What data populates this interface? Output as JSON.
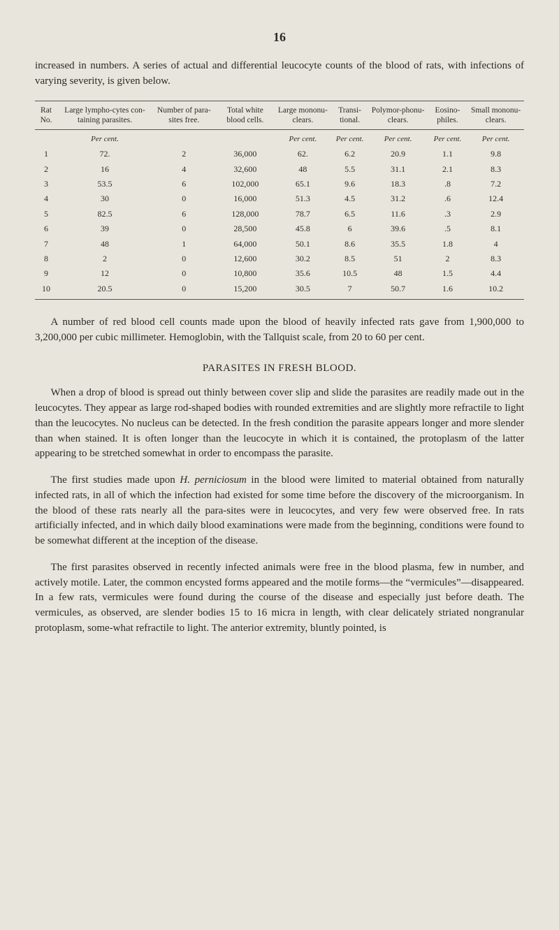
{
  "page_number": "16",
  "intro_para": "increased in numbers. A series of actual and differential leucocyte counts of the blood of rats, with infections of varying severity, is given below.",
  "table": {
    "columns": [
      "Rat No.",
      "Large lympho-cytes con-taining parasites.",
      "Number of para-sites free.",
      "Total white blood cells.",
      "Large mononu-clears.",
      "Transi-tional.",
      "Polymor-phonu-clears.",
      "Eosino-philes.",
      "Small mononu-clears."
    ],
    "unit_row": [
      "",
      "Per cent.",
      "",
      "",
      "Per cent.",
      "Per cent.",
      "Per cent.",
      "Per cent.",
      "Per cent."
    ],
    "rows": [
      [
        "1",
        "72.",
        "2",
        "36,000",
        "62.",
        "6.2",
        "20.9",
        "1.1",
        "9.8"
      ],
      [
        "2",
        "16",
        "4",
        "32,600",
        "48",
        "5.5",
        "31.1",
        "2.1",
        "8.3"
      ],
      [
        "3",
        "53.5",
        "6",
        "102,000",
        "65.1",
        "9.6",
        "18.3",
        ".8",
        "7.2"
      ],
      [
        "4",
        "30",
        "0",
        "16,000",
        "51.3",
        "4.5",
        "31.2",
        ".6",
        "12.4"
      ],
      [
        "5",
        "82.5",
        "6",
        "128,000",
        "78.7",
        "6.5",
        "11.6",
        ".3",
        "2.9"
      ],
      [
        "6",
        "39",
        "0",
        "28,500",
        "45.8",
        "6",
        "39.6",
        ".5",
        "8.1"
      ],
      [
        "7",
        "48",
        "1",
        "64,000",
        "50.1",
        "8.6",
        "35.5",
        "1.8",
        "4"
      ],
      [
        "8",
        "2",
        "0",
        "12,600",
        "30.2",
        "8.5",
        "51",
        "2",
        "8.3"
      ],
      [
        "9",
        "12",
        "0",
        "10,800",
        "35.6",
        "10.5",
        "48",
        "1.5",
        "4.4"
      ],
      [
        "10",
        "20.5",
        "0",
        "15,200",
        "30.5",
        "7",
        "50.7",
        "1.6",
        "10.2"
      ]
    ]
  },
  "after_table_para": "A number of red blood cell counts made upon the blood of heavily infected rats gave from 1,900,000 to 3,200,000 per cubic millimeter. Hemoglobin, with the Tallquist scale, from 20 to 60 per cent.",
  "section_heading": "PARASITES IN FRESH BLOOD.",
  "body_para_1": "When a drop of blood is spread out thinly between cover slip and slide the parasites are readily made out in the leucocytes. They appear as large rod-shaped bodies with rounded extremities and are slightly more refractile to light than the leucocytes. No nucleus can be detected. In the fresh condition the parasite appears longer and more slender than when stained. It is often longer than the leucocyte in which it is contained, the protoplasm of the latter appearing to be stretched somewhat in order to encompass the parasite.",
  "body_para_2_pre": "The first studies made upon ",
  "body_para_2_em": "H. perniciosum",
  "body_para_2_post": " in the blood were limited to material obtained from naturally infected rats, in all of which the infection had existed for some time before the discovery of the microorganism. In the blood of these rats nearly all the para-sites were in leucocytes, and very few were observed free. In rats artificially infected, and in which daily blood examinations were made from the beginning, conditions were found to be somewhat different at the inception of the disease.",
  "body_para_3": "The first parasites observed in recently infected animals were free in the blood plasma, few in number, and actively motile. Later, the common encysted forms appeared and the motile forms—the “vermicules”—disappeared. In a few rats, vermicules were found during the course of the disease and especially just before death. The vermicules, as observed, are slender bodies 15 to 16 micra in length, with clear delicately striated nongranular protoplasm, some-what refractile to light. The anterior extremity, bluntly pointed, is"
}
